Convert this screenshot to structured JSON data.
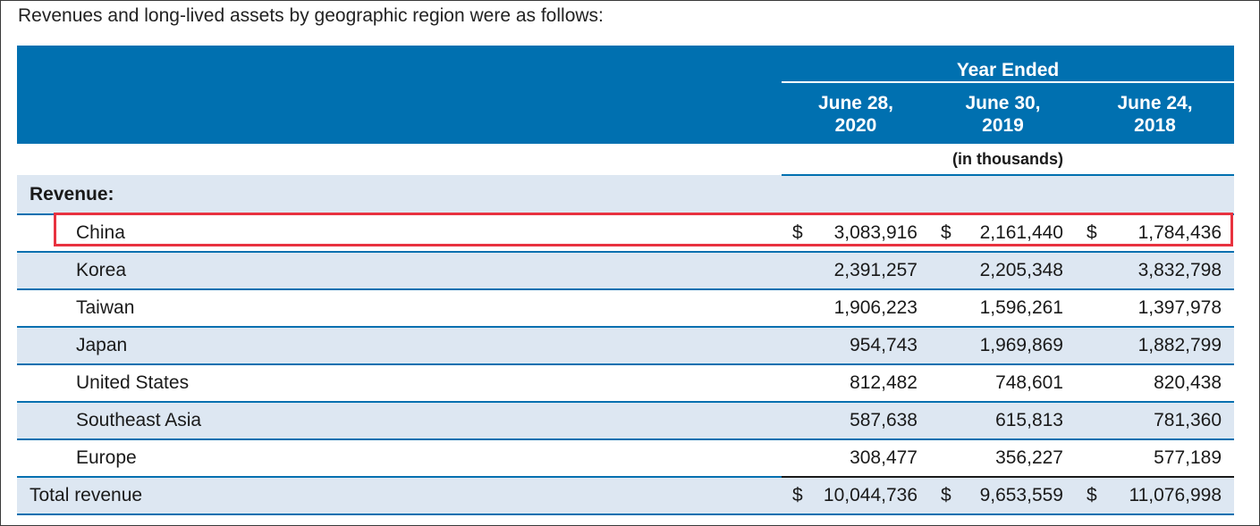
{
  "intro": "Revenues and long-lived assets by geographic region were as follows:",
  "header": {
    "period_label": "Year Ended",
    "columns": [
      {
        "line1": "June 28,",
        "line2": "2020"
      },
      {
        "line1": "June 30,",
        "line2": "2019"
      },
      {
        "line1": "June 24,",
        "line2": "2018"
      }
    ],
    "units": "(in thousands)"
  },
  "section_label": "Revenue:",
  "currency_symbol": "$",
  "rows": [
    {
      "label": "China",
      "values": [
        "3,083,916",
        "2,161,440",
        "1,784,436"
      ]
    },
    {
      "label": "Korea",
      "values": [
        "2,391,257",
        "2,205,348",
        "3,832,798"
      ]
    },
    {
      "label": "Taiwan",
      "values": [
        "1,906,223",
        "1,596,261",
        "1,397,978"
      ]
    },
    {
      "label": "Japan",
      "values": [
        "954,743",
        "1,969,869",
        "1,882,799"
      ]
    },
    {
      "label": "United States",
      "values": [
        "812,482",
        "748,601",
        "820,438"
      ]
    },
    {
      "label": "Southeast Asia",
      "values": [
        "587,638",
        "615,813",
        "781,360"
      ]
    },
    {
      "label": "Europe",
      "values": [
        "308,477",
        "356,227",
        "577,189"
      ]
    }
  ],
  "total": {
    "label": "Total revenue",
    "values": [
      "10,044,736",
      "9,653,559",
      "11,076,998"
    ]
  },
  "colors": {
    "header_bg": "#0070b0",
    "row_shade": "#dde7f2",
    "highlight": "#e8323f"
  }
}
